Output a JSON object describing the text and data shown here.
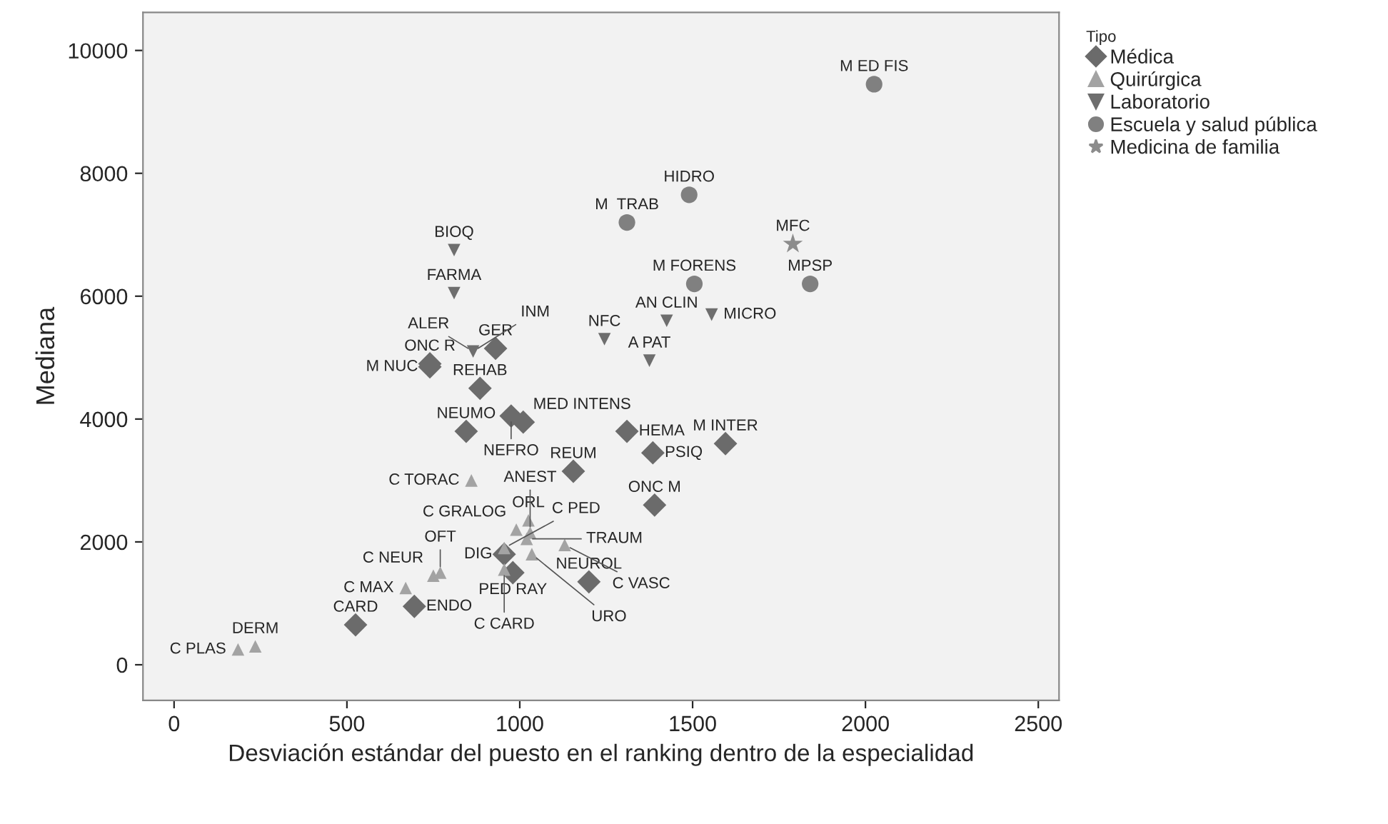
{
  "chart_data": {
    "type": "scatter",
    "xlabel": "Desviación estándar del puesto en el ranking dentro de la especialidad",
    "ylabel": "Mediana",
    "legend_title": "Tipo",
    "legend": "right",
    "grid": false,
    "xlim": [
      -90,
      2560
    ],
    "ylim": [
      -580,
      10620
    ],
    "xticks": [
      0,
      500,
      1000,
      1500,
      2000,
      2500
    ],
    "yticks": [
      0,
      2000,
      4000,
      6000,
      8000,
      10000
    ],
    "series": [
      {
        "name": "Médica",
        "color": "#6b6b6b",
        "marker": "diamond",
        "x": [
          525,
          695,
          955,
          980,
          1200,
          1390,
          1155,
          1010,
          975,
          845,
          1310,
          1385,
          1595,
          885,
          740,
          740,
          930
        ],
        "values": [
          650,
          950,
          1800,
          1500,
          1350,
          2600,
          3150,
          3950,
          4050,
          3800,
          3800,
          3450,
          3600,
          4500,
          4850,
          4900,
          5150
        ]
      },
      {
        "name": "Quirúrgica",
        "color": "#a3a3a3",
        "marker": "triangle",
        "x": [
          185,
          235,
          670,
          750,
          770,
          955,
          955,
          1025,
          990,
          1030,
          1020,
          1035,
          1130,
          860
        ],
        "values": [
          250,
          300,
          1250,
          1450,
          1500,
          1550,
          1900,
          2350,
          2200,
          2150,
          2050,
          1800,
          1950,
          3000
        ]
      },
      {
        "name": "Laboratorio",
        "color": "#6e6e6e",
        "marker": "triangle_down",
        "x": [
          810,
          810,
          865,
          1245,
          1375,
          1425,
          1555
        ],
        "values": [
          6750,
          6050,
          5100,
          5300,
          4950,
          5600,
          5700
        ]
      },
      {
        "name": "Escuela y salud pública",
        "color": "#808080",
        "marker": "circle",
        "x": [
          1310,
          1490,
          1505,
          1840,
          2025
        ],
        "values": [
          7200,
          7650,
          6200,
          6200,
          9450
        ]
      },
      {
        "name": "Medicina de familia",
        "color": "#8c8c8c",
        "marker": "star",
        "x": [
          1790
        ],
        "values": [
          6850
        ]
      }
    ],
    "annotations": [
      {
        "text": "CARD",
        "x": 525,
        "y": 650
      },
      {
        "text": "ENDO",
        "x": 695,
        "y": 950
      },
      {
        "text": "DIG",
        "x": 955,
        "y": 1800
      },
      {
        "text": "PED RAY",
        "x": 980,
        "y": 1500
      },
      {
        "text": "NEUROL",
        "x": 1200,
        "y": 1350
      },
      {
        "text": "ONC M",
        "x": 1390,
        "y": 2600
      },
      {
        "text": "REUM",
        "x": 1155,
        "y": 3150
      },
      {
        "text": "MED INTENS",
        "x": 1010,
        "y": 3950
      },
      {
        "text": "NEFRO",
        "x": 975,
        "y": 4050
      },
      {
        "text": "NEUMO",
        "x": 845,
        "y": 3800
      },
      {
        "text": "HEMA",
        "x": 1310,
        "y": 3800
      },
      {
        "text": "PSIQ",
        "x": 1385,
        "y": 3450
      },
      {
        "text": "M INTER",
        "x": 1595,
        "y": 3600
      },
      {
        "text": "REHAB",
        "x": 885,
        "y": 4500
      },
      {
        "text": "M NUC",
        "x": 740,
        "y": 4850
      },
      {
        "text": "ONC R",
        "x": 740,
        "y": 4900
      },
      {
        "text": "GER",
        "x": 930,
        "y": 5150
      },
      {
        "text": "C PLAS",
        "x": 185,
        "y": 250
      },
      {
        "text": "DERM",
        "x": 235,
        "y": 300
      },
      {
        "text": "C MAX",
        "x": 670,
        "y": 1250
      },
      {
        "text": "C NEUR",
        "x": 750,
        "y": 1450
      },
      {
        "text": "OFT",
        "x": 770,
        "y": 1500
      },
      {
        "text": "C CARD",
        "x": 955,
        "y": 1550
      },
      {
        "text": "C PED",
        "x": 955,
        "y": 1900
      },
      {
        "text": "ORL",
        "x": 1025,
        "y": 2350
      },
      {
        "text": "C GRALOG",
        "x": 990,
        "y": 2200
      },
      {
        "text": "ANEST",
        "x": 1030,
        "y": 2150
      },
      {
        "text": "TRAUM",
        "x": 1020,
        "y": 2050
      },
      {
        "text": "URO",
        "x": 1035,
        "y": 1800
      },
      {
        "text": "C VASC",
        "x": 1130,
        "y": 1950
      },
      {
        "text": "C TORAC",
        "x": 860,
        "y": 3000
      },
      {
        "text": "BIOQ",
        "x": 810,
        "y": 6750
      },
      {
        "text": "FARMA",
        "x": 810,
        "y": 6050
      },
      {
        "text": "ALER",
        "x": 865,
        "y": 5100
      },
      {
        "text": "INM",
        "x": 865,
        "y": 5100
      },
      {
        "text": "NFC",
        "x": 1245,
        "y": 5300
      },
      {
        "text": "A PAT",
        "x": 1375,
        "y": 4950
      },
      {
        "text": "AN CLIN",
        "x": 1425,
        "y": 5600
      },
      {
        "text": "MICRO",
        "x": 1555,
        "y": 5700
      },
      {
        "text": "M  TRAB",
        "x": 1310,
        "y": 7200
      },
      {
        "text": "HIDRO",
        "x": 1490,
        "y": 7650
      },
      {
        "text": "M FORENS",
        "x": 1505,
        "y": 6200
      },
      {
        "text": "MPSP",
        "x": 1840,
        "y": 6200
      },
      {
        "text": "M ED FIS",
        "x": 2025,
        "y": 9450
      },
      {
        "text": "MFC",
        "x": 1790,
        "y": 6850
      }
    ]
  }
}
